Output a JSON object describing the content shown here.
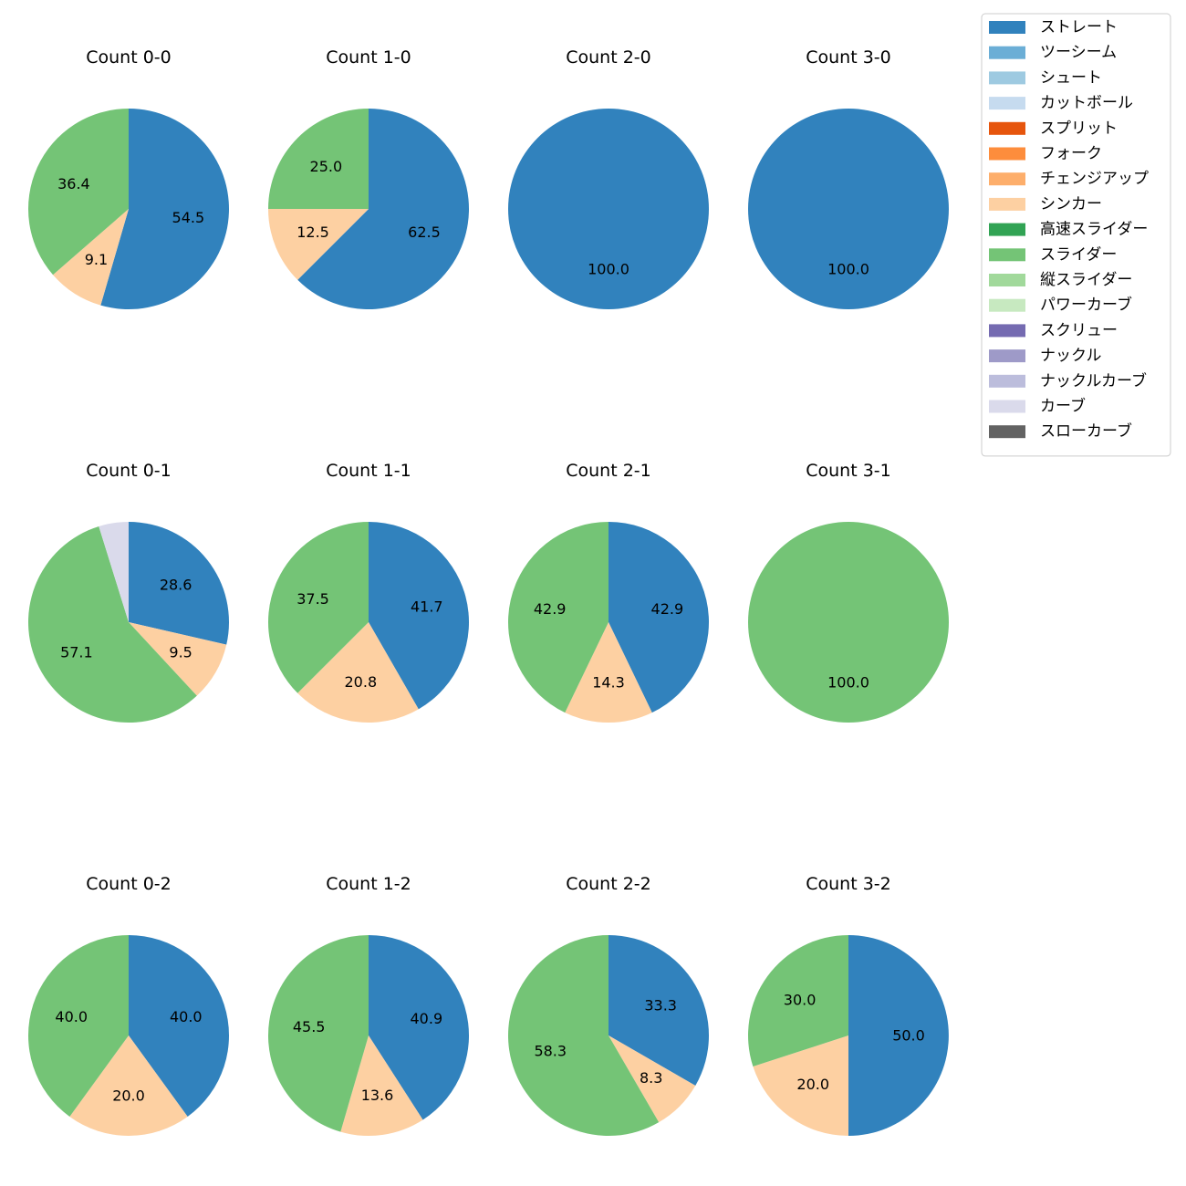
{
  "chart_data": {
    "type": "pie",
    "legend": {
      "location": "top-right",
      "entries": [
        {
          "name": "ストレート",
          "color": "#3182bd"
        },
        {
          "name": "ツーシーム",
          "color": "#6baed6"
        },
        {
          "name": "シュート",
          "color": "#9ecae1"
        },
        {
          "name": "カットボール",
          "color": "#c6dbef"
        },
        {
          "name": "スプリット",
          "color": "#e6550d"
        },
        {
          "name": "フォーク",
          "color": "#fd8d3c"
        },
        {
          "name": "チェンジアップ",
          "color": "#fdae6b"
        },
        {
          "name": "シンカー",
          "color": "#fdd0a2"
        },
        {
          "name": "高速スライダー",
          "color": "#31a354"
        },
        {
          "name": "スライダー",
          "color": "#74c476"
        },
        {
          "name": "縦スライダー",
          "color": "#a1d99b"
        },
        {
          "name": "パワーカーブ",
          "color": "#c7e9c0"
        },
        {
          "name": "スクリュー",
          "color": "#756bb1"
        },
        {
          "name": "ナックル",
          "color": "#9e9ac8"
        },
        {
          "name": "ナックルカーブ",
          "color": "#bcbddc"
        },
        {
          "name": "カーブ",
          "color": "#dadaeb"
        },
        {
          "name": "スローカーブ",
          "color": "#636363"
        }
      ]
    },
    "pies": [
      {
        "title": "Count 0-0",
        "slices": [
          {
            "pitch": "ストレート",
            "value": 54.5,
            "label": "54.5"
          },
          {
            "pitch": "シンカー",
            "value": 9.1,
            "label": "9.1"
          },
          {
            "pitch": "スライダー",
            "value": 36.4,
            "label": "36.4"
          }
        ]
      },
      {
        "title": "Count 1-0",
        "slices": [
          {
            "pitch": "ストレート",
            "value": 62.5,
            "label": "62.5"
          },
          {
            "pitch": "シンカー",
            "value": 12.5,
            "label": "12.5"
          },
          {
            "pitch": "スライダー",
            "value": 25.0,
            "label": "25.0"
          }
        ]
      },
      {
        "title": "Count 2-0",
        "slices": [
          {
            "pitch": "ストレート",
            "value": 100.0,
            "label": "100.0"
          }
        ]
      },
      {
        "title": "Count 3-0",
        "slices": [
          {
            "pitch": "ストレート",
            "value": 100.0,
            "label": "100.0"
          }
        ]
      },
      {
        "title": "Count 0-1",
        "slices": [
          {
            "pitch": "ストレート",
            "value": 28.6,
            "label": "28.6"
          },
          {
            "pitch": "シンカー",
            "value": 9.5,
            "label": "9.5"
          },
          {
            "pitch": "スライダー",
            "value": 57.1,
            "label": "57.1"
          },
          {
            "pitch": "カーブ",
            "value": 4.8,
            "label": ""
          }
        ]
      },
      {
        "title": "Count 1-1",
        "slices": [
          {
            "pitch": "ストレート",
            "value": 41.7,
            "label": "41.7"
          },
          {
            "pitch": "シンカー",
            "value": 20.8,
            "label": "20.8"
          },
          {
            "pitch": "スライダー",
            "value": 37.5,
            "label": "37.5"
          }
        ]
      },
      {
        "title": "Count 2-1",
        "slices": [
          {
            "pitch": "ストレート",
            "value": 42.9,
            "label": "42.9"
          },
          {
            "pitch": "シンカー",
            "value": 14.3,
            "label": "14.3"
          },
          {
            "pitch": "スライダー",
            "value": 42.9,
            "label": "42.9"
          }
        ]
      },
      {
        "title": "Count 3-1",
        "slices": [
          {
            "pitch": "スライダー",
            "value": 100.0,
            "label": "100.0"
          }
        ]
      },
      {
        "title": "Count 0-2",
        "slices": [
          {
            "pitch": "ストレート",
            "value": 40.0,
            "label": "40.0"
          },
          {
            "pitch": "シンカー",
            "value": 20.0,
            "label": "20.0"
          },
          {
            "pitch": "スライダー",
            "value": 40.0,
            "label": "40.0"
          }
        ]
      },
      {
        "title": "Count 1-2",
        "slices": [
          {
            "pitch": "ストレート",
            "value": 40.9,
            "label": "40.9"
          },
          {
            "pitch": "シンカー",
            "value": 13.6,
            "label": "13.6"
          },
          {
            "pitch": "スライダー",
            "value": 45.5,
            "label": "45.5"
          }
        ]
      },
      {
        "title": "Count 2-2",
        "slices": [
          {
            "pitch": "ストレート",
            "value": 33.3,
            "label": "33.3"
          },
          {
            "pitch": "シンカー",
            "value": 8.3,
            "label": "8.3"
          },
          {
            "pitch": "スライダー",
            "value": 58.3,
            "label": "58.3"
          }
        ]
      },
      {
        "title": "Count 3-2",
        "slices": [
          {
            "pitch": "ストレート",
            "value": 50.0,
            "label": "50.0"
          },
          {
            "pitch": "シンカー",
            "value": 20.0,
            "label": "20.0"
          },
          {
            "pitch": "スライダー",
            "value": 30.0,
            "label": "30.0"
          }
        ]
      }
    ]
  }
}
